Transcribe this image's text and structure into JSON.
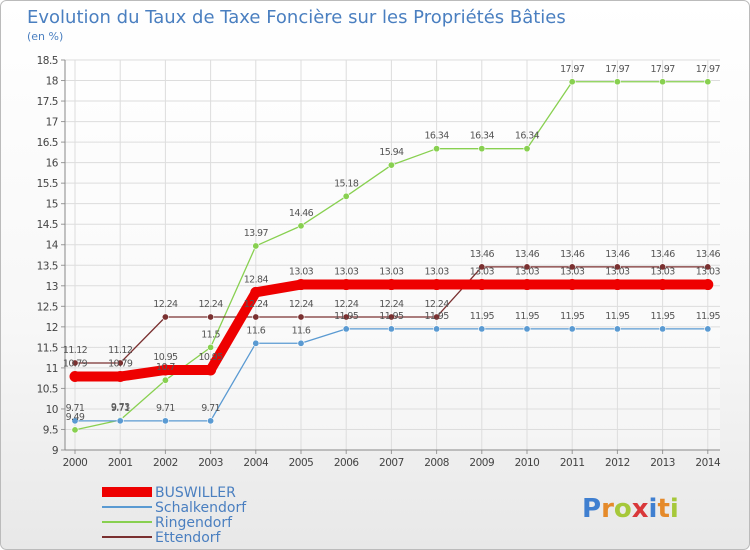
{
  "chart_data": {
    "type": "line",
    "title": "Evolution du Taux de Taxe Foncière sur les Propriétés Bâties",
    "subtitle": "(en %)",
    "xlabel": "",
    "ylabel": "",
    "categories": [
      "2000",
      "2001",
      "2002",
      "2003",
      "2004",
      "2005",
      "2006",
      "2007",
      "2008",
      "2009",
      "2010",
      "2011",
      "2012",
      "2013",
      "2014"
    ],
    "ylim": [
      9,
      18.5
    ],
    "yticks": [
      "9",
      "9.5",
      "10",
      "10.5",
      "11",
      "11.5",
      "12",
      "12.5",
      "13",
      "13.5",
      "14",
      "14.5",
      "15",
      "15.5",
      "16",
      "16.5",
      "17",
      "17.5",
      "18",
      "18.5"
    ],
    "grid": true,
    "legend_position": "bottom-left",
    "series": [
      {
        "name": "BUSWILLER",
        "color": "#ee0000",
        "values": [
          10.79,
          10.79,
          10.95,
          10.95,
          12.84,
          13.03,
          13.03,
          13.03,
          13.03,
          13.03,
          13.03,
          13.03,
          13.03,
          13.03,
          13.03
        ],
        "labels": [
          "10.79",
          "10.79",
          "10.95",
          "10.95",
          "12.84",
          "13.03",
          "13.03",
          "13.03",
          "13.03",
          "13.03",
          "13.03",
          "13.03",
          "13.03",
          "13.03",
          "13.03"
        ]
      },
      {
        "name": "Schalkendorf",
        "color": "#5a9ad2",
        "values": [
          9.71,
          9.71,
          9.71,
          9.71,
          11.6,
          11.6,
          11.95,
          11.95,
          11.95,
          11.95,
          11.95,
          11.95,
          11.95,
          11.95,
          11.95
        ],
        "labels": [
          "9.71",
          "9.71",
          "9.71",
          "9.71",
          "11.6",
          "11.6",
          "11.95",
          "11.95",
          "11.95",
          "11.95",
          "11.95",
          "11.95",
          "11.95",
          "11.95",
          "11.95"
        ]
      },
      {
        "name": "Ringendorf",
        "color": "#88d050",
        "values": [
          9.49,
          9.73,
          10.7,
          11.5,
          13.97,
          14.46,
          15.18,
          15.94,
          16.34,
          16.34,
          16.34,
          17.97,
          17.97,
          17.97,
          17.97
        ],
        "labels": [
          "9.49",
          "9.73",
          "10.7",
          "11.5",
          "13.97",
          "14.46",
          "15.18",
          "15.94",
          "16.34",
          "16.34",
          "16.34",
          "17.97",
          "17.97",
          "17.97",
          "17.97"
        ]
      },
      {
        "name": "Ettendorf",
        "color": "#7a3030",
        "values": [
          11.12,
          11.12,
          12.24,
          12.24,
          12.24,
          12.24,
          12.24,
          12.24,
          12.24,
          13.46,
          13.46,
          13.46,
          13.46,
          13.46,
          13.46
        ],
        "labels": [
          "11.12",
          "11.12",
          "12.24",
          "12.24",
          "12.24",
          "12.24",
          "12.24",
          "12.24",
          "12.24",
          "13.46",
          "13.46",
          "13.46",
          "13.46",
          "13.46",
          "13.46"
        ]
      }
    ]
  },
  "logo": {
    "letters": [
      "P",
      "r",
      "o",
      "x",
      "i",
      "t",
      "i"
    ],
    "colors": [
      "#3f7fd0",
      "#e58a2a",
      "#a6c83a",
      "#d9383a",
      "#3f7fd0",
      "#e58a2a",
      "#a6c83a"
    ]
  }
}
